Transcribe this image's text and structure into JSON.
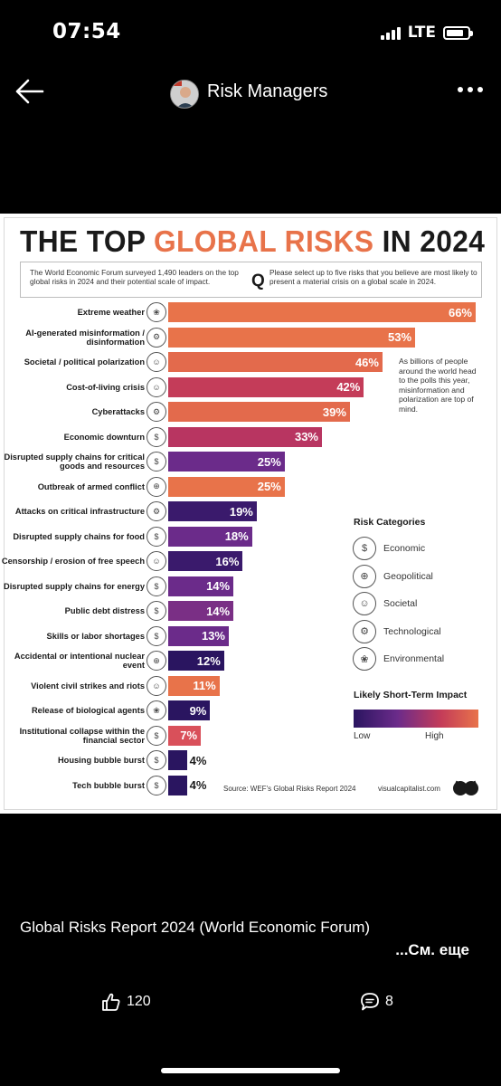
{
  "status": {
    "time": "07:54",
    "network": "LTE"
  },
  "nav": {
    "title": "Risk Managers"
  },
  "infographic": {
    "title_part1": "THE TOP ",
    "title_accent": "GLOBAL RISKS",
    "title_part2": " IN 2024",
    "intro": "The World Economic Forum surveyed 1,490 leaders on the top global risks in 2024 and their potential scale of impact.",
    "q": "Q",
    "question": "Please select up to five risks that you believe are most likely to present a material crisis on a global scale in 2024.",
    "side_note": "As billions of people around the world head to the polls this year, misinformation and polarization are top of mind.",
    "legend_title": "Risk Categories",
    "legend": [
      {
        "label": "Economic",
        "icon": "economic-icon"
      },
      {
        "label": "Geopolitical",
        "icon": "geopolitical-icon"
      },
      {
        "label": "Societal",
        "icon": "societal-icon"
      },
      {
        "label": "Technological",
        "icon": "technological-icon"
      },
      {
        "label": "Environmental",
        "icon": "environmental-icon"
      }
    ],
    "impact_title": "Likely Short-Term Impact",
    "impact_low": "Low",
    "impact_high": "High",
    "source": "Source: WEF's Global Risks Report 2024",
    "brand": "visualcapitalist.com",
    "colors": {
      "accent": "#e8734a",
      "low": "#2a1560",
      "high": "#e8734a"
    }
  },
  "chart_data": {
    "type": "bar",
    "orientation": "horizontal",
    "title": "THE TOP GLOBAL RISKS IN 2024",
    "categories": [
      "Extreme weather",
      "AI-generated misinformation / disinformation",
      "Societal / political polarization",
      "Cost-of-living crisis",
      "Cyberattacks",
      "Economic downturn",
      "Disrupted supply chains for critical goods and resources",
      "Outbreak of armed conflict",
      "Attacks on critical infrastructure",
      "Disrupted supply chains for food",
      "Censorship / erosion of free speech",
      "Disrupted supply chains for energy",
      "Public debt distress",
      "Skills or labor shortages",
      "Accidental or intentional nuclear event",
      "Violent civil strikes and riots",
      "Release of biological agents",
      "Institutional collapse within the financial sector",
      "Housing bubble burst",
      "Tech bubble burst"
    ],
    "values": [
      66,
      53,
      46,
      42,
      39,
      33,
      25,
      25,
      19,
      18,
      16,
      14,
      14,
      13,
      12,
      11,
      9,
      7,
      4,
      4
    ],
    "value_labels": [
      "66%",
      "53%",
      "46%",
      "42%",
      "39%",
      "33%",
      "25%",
      "25%",
      "19%",
      "18%",
      "16%",
      "14%",
      "14%",
      "13%",
      "12%",
      "11%",
      "9%",
      "7%",
      "4%",
      "4%"
    ],
    "risk_category": [
      "Environmental",
      "Technological",
      "Societal",
      "Societal",
      "Technological",
      "Economic",
      "Economic",
      "Geopolitical",
      "Technological",
      "Economic",
      "Societal",
      "Economic",
      "Economic",
      "Economic",
      "Geopolitical",
      "Societal",
      "Environmental",
      "Economic",
      "Economic",
      "Economic"
    ],
    "bar_colors": [
      "#e8734a",
      "#e8734a",
      "#e36a4c",
      "#c43c59",
      "#e36a4c",
      "#b83561",
      "#6b2b8a",
      "#e8734a",
      "#3a1a6c",
      "#6b2b8a",
      "#3a1a6c",
      "#6b2b8a",
      "#7a2f85",
      "#6b2b8a",
      "#2a1560",
      "#e8734a",
      "#2a1560",
      "#d9505a",
      "#2a1560",
      "#2a1560"
    ],
    "xlim": [
      0,
      66
    ]
  },
  "post": {
    "caption": "Global Risks Report 2024 (World Economic Forum)",
    "see_more": "...См. еще",
    "likes": "120",
    "comments": "8"
  }
}
